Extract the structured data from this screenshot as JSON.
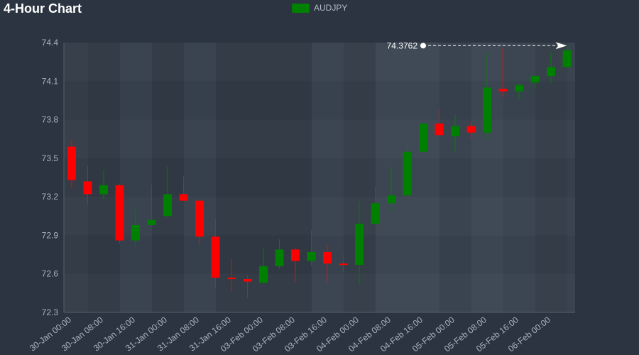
{
  "chart_data": {
    "type": "candlestick",
    "title": "4-Hour Chart",
    "legend": {
      "label": "AUDJPY",
      "color": "#008000",
      "position": "top-center"
    },
    "up_color": "#008000",
    "down_color": "#ff0000",
    "ylim": [
      72.3,
      74.4
    ],
    "yticks": [
      "72.3",
      "72.6",
      "72.9",
      "73.2",
      "73.5",
      "73.8",
      "74.1",
      "74.4"
    ],
    "xtick_labels": [
      "30-Jan 00:00",
      "30-Jan 08:00",
      "30-Jan 16:00",
      "31-Jan 00:00",
      "31-Jan 08:00",
      "31-Jan 16:00",
      "03-Feb 00:00",
      "03-Feb 08:00",
      "03-Feb 16:00",
      "04-Feb 00:00",
      "04-Feb 08:00",
      "04-Feb 16:00",
      "05-Feb 00:00",
      "05-Feb 08:00",
      "05-Feb 16:00",
      "06-Feb 00:00"
    ],
    "candles": [
      {
        "o": 73.59,
        "h": 73.64,
        "l": 73.27,
        "c": 73.33
      },
      {
        "o": 73.32,
        "h": 73.44,
        "l": 73.14,
        "c": 73.22
      },
      {
        "o": 73.22,
        "h": 73.41,
        "l": 73.18,
        "c": 73.29
      },
      {
        "o": 73.29,
        "h": 73.3,
        "l": 72.83,
        "c": 72.86
      },
      {
        "o": 72.86,
        "h": 73.1,
        "l": 72.82,
        "c": 72.98
      },
      {
        "o": 72.98,
        "h": 73.29,
        "l": 72.97,
        "c": 73.02
      },
      {
        "o": 73.05,
        "h": 73.44,
        "l": 73.04,
        "c": 73.22
      },
      {
        "o": 73.22,
        "h": 73.36,
        "l": 73.17,
        "c": 73.17
      },
      {
        "o": 73.17,
        "h": 73.18,
        "l": 72.82,
        "c": 72.89
      },
      {
        "o": 72.89,
        "h": 73.03,
        "l": 72.49,
        "c": 72.57
      },
      {
        "o": 72.57,
        "h": 72.72,
        "l": 72.46,
        "c": 72.56
      },
      {
        "o": 72.56,
        "h": 72.59,
        "l": 72.41,
        "c": 72.54
      },
      {
        "o": 72.53,
        "h": 72.8,
        "l": 72.53,
        "c": 72.66
      },
      {
        "o": 72.66,
        "h": 72.87,
        "l": 72.64,
        "c": 72.79
      },
      {
        "o": 72.79,
        "h": 72.8,
        "l": 72.53,
        "c": 72.7
      },
      {
        "o": 72.7,
        "h": 72.94,
        "l": 72.66,
        "c": 72.77
      },
      {
        "o": 72.77,
        "h": 72.83,
        "l": 72.53,
        "c": 72.68
      },
      {
        "o": 72.68,
        "h": 72.75,
        "l": 72.61,
        "c": 72.67
      },
      {
        "o": 72.67,
        "h": 73.16,
        "l": 72.51,
        "c": 72.99
      },
      {
        "o": 72.99,
        "h": 73.28,
        "l": 72.98,
        "c": 73.15
      },
      {
        "o": 73.15,
        "h": 73.43,
        "l": 73.09,
        "c": 73.21
      },
      {
        "o": 73.21,
        "h": 73.63,
        "l": 73.21,
        "c": 73.55
      },
      {
        "o": 73.55,
        "h": 73.77,
        "l": 73.55,
        "c": 73.77
      },
      {
        "o": 73.77,
        "h": 73.89,
        "l": 73.67,
        "c": 73.68
      },
      {
        "o": 73.67,
        "h": 73.84,
        "l": 73.54,
        "c": 73.75
      },
      {
        "o": 73.75,
        "h": 73.78,
        "l": 73.65,
        "c": 73.7
      },
      {
        "o": 73.7,
        "h": 74.33,
        "l": 73.64,
        "c": 74.05
      },
      {
        "o": 74.04,
        "h": 74.36,
        "l": 73.97,
        "c": 74.02
      },
      {
        "o": 74.02,
        "h": 74.08,
        "l": 73.96,
        "c": 74.07
      },
      {
        "o": 74.09,
        "h": 74.15,
        "l": 74.04,
        "c": 74.14
      },
      {
        "o": 74.14,
        "h": 74.33,
        "l": 74.08,
        "c": 74.21
      },
      {
        "o": 74.21,
        "h": 74.37,
        "l": 74.2,
        "c": 74.34
      }
    ],
    "annotation": {
      "label": "74.3762",
      "value": 74.3762
    }
  }
}
